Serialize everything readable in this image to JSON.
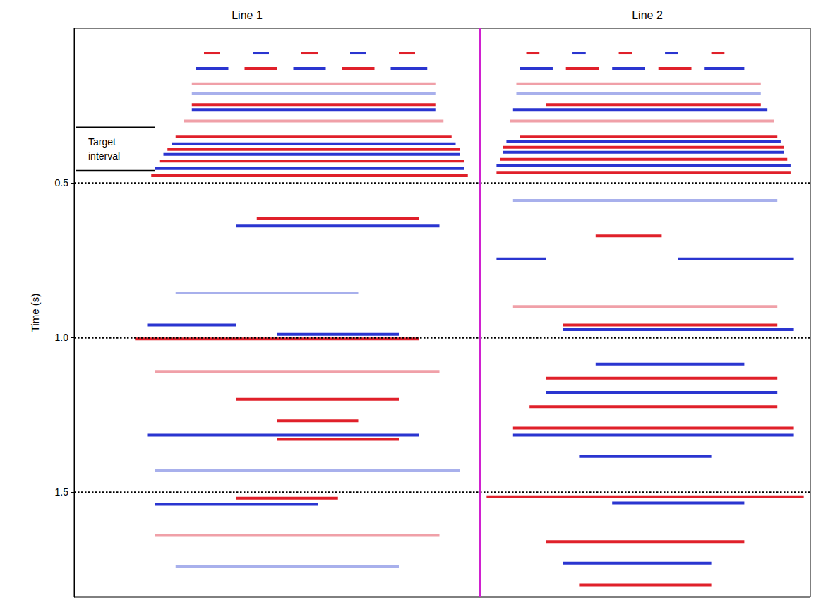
{
  "chart_data": {
    "type": "seismic_section",
    "ylabel": "Time (s)",
    "ylim": [
      0,
      1.84
    ],
    "yticks": [
      0.5,
      {
        "value": 1,
        "label": "1.0"
      },
      1.5
    ],
    "xlim": [
      0,
      100
    ],
    "grid": true,
    "tick_labels": "y",
    "annotations": [
      {
        "text": "Target interval",
        "t": [
          0.32,
          0.46
        ]
      }
    ],
    "panels": [
      {
        "title": "Line 1",
        "events": [
          {
            "x": [
              32,
              36
            ],
            "t": 0.08,
            "color": "#e0202a"
          },
          {
            "x": [
              44,
              48
            ],
            "t": 0.08,
            "color": "#2a35d0"
          },
          {
            "x": [
              56,
              60
            ],
            "t": 0.08,
            "color": "#e0202a"
          },
          {
            "x": [
              68,
              72
            ],
            "t": 0.08,
            "color": "#2a35d0"
          },
          {
            "x": [
              80,
              84
            ],
            "t": 0.08,
            "color": "#e0202a"
          },
          {
            "x": [
              30,
              38
            ],
            "t": 0.13,
            "color": "#2a35d0"
          },
          {
            "x": [
              42,
              50
            ],
            "t": 0.13,
            "color": "#e0202a"
          },
          {
            "x": [
              54,
              62
            ],
            "t": 0.13,
            "color": "#2a35d0"
          },
          {
            "x": [
              66,
              74
            ],
            "t": 0.13,
            "color": "#e0202a"
          },
          {
            "x": [
              78,
              87
            ],
            "t": 0.13,
            "color": "#2a35d0"
          },
          {
            "x": [
              29,
              89
            ],
            "t": 0.18,
            "color": "#f0a0a8"
          },
          {
            "x": [
              29,
              89
            ],
            "t": 0.21,
            "color": "#a8b0ec"
          },
          {
            "x": [
              29,
              89
            ],
            "t": 0.247,
            "color": "#e0202a"
          },
          {
            "x": [
              29,
              89
            ],
            "t": 0.263,
            "color": "#2a35d0"
          },
          {
            "x": [
              27,
              91
            ],
            "t": 0.3,
            "color": "#f0a0a8"
          },
          {
            "x": [
              25,
              93
            ],
            "t": 0.35,
            "color": "#e0202a"
          },
          {
            "x": [
              24,
              94
            ],
            "t": 0.374,
            "color": "#2a35d0"
          },
          {
            "x": [
              23,
              95
            ],
            "t": 0.392,
            "color": "#e0202a"
          },
          {
            "x": [
              22,
              95
            ],
            "t": 0.408,
            "color": "#2a35d0"
          },
          {
            "x": [
              21,
              96
            ],
            "t": 0.43,
            "color": "#e0202a"
          },
          {
            "x": [
              20,
              96
            ],
            "t": 0.454,
            "color": "#2a35d0"
          },
          {
            "x": [
              19,
              97
            ],
            "t": 0.477,
            "color": "#e0202a"
          },
          {
            "x": [
              45,
              85
            ],
            "t": 0.615,
            "color": "#e0202a"
          },
          {
            "x": [
              40,
              90
            ],
            "t": 0.64,
            "color": "#2a35d0"
          },
          {
            "x": [
              25,
              70
            ],
            "t": 0.856,
            "color": "#a8b0ec"
          },
          {
            "x": [
              18,
              40
            ],
            "t": 0.96,
            "color": "#2a35d0"
          },
          {
            "x": [
              50,
              80
            ],
            "t": 0.99,
            "color": "#2a35d0"
          },
          {
            "x": [
              15,
              85
            ],
            "t": 1.005,
            "color": "#e0202a"
          },
          {
            "x": [
              20,
              90
            ],
            "t": 1.11,
            "color": "#f0a0a8"
          },
          {
            "x": [
              40,
              80
            ],
            "t": 1.2,
            "color": "#e0202a"
          },
          {
            "x": [
              50,
              70
            ],
            "t": 1.27,
            "color": "#e0202a"
          },
          {
            "x": [
              18,
              85
            ],
            "t": 1.316,
            "color": "#2a35d0"
          },
          {
            "x": [
              50,
              80
            ],
            "t": 1.33,
            "color": "#e0202a"
          },
          {
            "x": [
              20,
              95
            ],
            "t": 1.43,
            "color": "#a8b0ec"
          },
          {
            "x": [
              40,
              65
            ],
            "t": 1.52,
            "color": "#e0202a"
          },
          {
            "x": [
              20,
              60
            ],
            "t": 1.54,
            "color": "#2a35d0"
          },
          {
            "x": [
              20,
              90
            ],
            "t": 1.64,
            "color": "#f0a0a8"
          },
          {
            "x": [
              25,
              80
            ],
            "t": 1.74,
            "color": "#a8b0ec"
          }
        ]
      },
      {
        "title": "Line 2",
        "events": [
          {
            "x": [
              14,
              18
            ],
            "t": 0.08,
            "color": "#e0202a"
          },
          {
            "x": [
              28,
              32
            ],
            "t": 0.08,
            "color": "#2a35d0"
          },
          {
            "x": [
              42,
              46
            ],
            "t": 0.08,
            "color": "#e0202a"
          },
          {
            "x": [
              56,
              60
            ],
            "t": 0.08,
            "color": "#2a35d0"
          },
          {
            "x": [
              70,
              74
            ],
            "t": 0.08,
            "color": "#e0202a"
          },
          {
            "x": [
              12,
              22
            ],
            "t": 0.13,
            "color": "#2a35d0"
          },
          {
            "x": [
              26,
              36
            ],
            "t": 0.13,
            "color": "#e0202a"
          },
          {
            "x": [
              40,
              50
            ],
            "t": 0.13,
            "color": "#2a35d0"
          },
          {
            "x": [
              54,
              64
            ],
            "t": 0.13,
            "color": "#e0202a"
          },
          {
            "x": [
              68,
              80
            ],
            "t": 0.13,
            "color": "#2a35d0"
          },
          {
            "x": [
              11,
              85
            ],
            "t": 0.18,
            "color": "#f0a0a8"
          },
          {
            "x": [
              11,
              85
            ],
            "t": 0.21,
            "color": "#a8b0ec"
          },
          {
            "x": [
              20,
              85
            ],
            "t": 0.247,
            "color": "#e0202a"
          },
          {
            "x": [
              10,
              87
            ],
            "t": 0.263,
            "color": "#2a35d0"
          },
          {
            "x": [
              9,
              89
            ],
            "t": 0.3,
            "color": "#f0a0a8"
          },
          {
            "x": [
              12,
              90
            ],
            "t": 0.35,
            "color": "#e0202a"
          },
          {
            "x": [
              8,
              91
            ],
            "t": 0.367,
            "color": "#2a35d0"
          },
          {
            "x": [
              7,
              92
            ],
            "t": 0.385,
            "color": "#e0202a"
          },
          {
            "x": [
              7,
              92
            ],
            "t": 0.401,
            "color": "#2a35d0"
          },
          {
            "x": [
              6,
              93
            ],
            "t": 0.424,
            "color": "#e0202a"
          },
          {
            "x": [
              5,
              94
            ],
            "t": 0.443,
            "color": "#2a35d0"
          },
          {
            "x": [
              5,
              94
            ],
            "t": 0.466,
            "color": "#e0202a"
          },
          {
            "x": [
              10,
              90
            ],
            "t": 0.557,
            "color": "#a8b0ec"
          },
          {
            "x": [
              35,
              55
            ],
            "t": 0.672,
            "color": "#e0202a"
          },
          {
            "x": [
              5,
              20
            ],
            "t": 0.746,
            "color": "#2a35d0"
          },
          {
            "x": [
              60,
              95
            ],
            "t": 0.746,
            "color": "#2a35d0"
          },
          {
            "x": [
              10,
              90
            ],
            "t": 0.9,
            "color": "#f0a0a8"
          },
          {
            "x": [
              25,
              90
            ],
            "t": 0.96,
            "color": "#e0202a"
          },
          {
            "x": [
              25,
              95
            ],
            "t": 0.975,
            "color": "#2a35d0"
          },
          {
            "x": [
              35,
              80
            ],
            "t": 1.086,
            "color": "#2a35d0"
          },
          {
            "x": [
              20,
              90
            ],
            "t": 1.132,
            "color": "#e0202a"
          },
          {
            "x": [
              20,
              90
            ],
            "t": 1.178,
            "color": "#2a35d0"
          },
          {
            "x": [
              15,
              90
            ],
            "t": 1.224,
            "color": "#e0202a"
          },
          {
            "x": [
              10,
              95
            ],
            "t": 1.293,
            "color": "#e0202a"
          },
          {
            "x": [
              10,
              95
            ],
            "t": 1.316,
            "color": "#2a35d0"
          },
          {
            "x": [
              30,
              70
            ],
            "t": 1.385,
            "color": "#2a35d0"
          },
          {
            "x": [
              2,
              98
            ],
            "t": 1.515,
            "color": "#e0202a"
          },
          {
            "x": [
              40,
              80
            ],
            "t": 1.535,
            "color": "#2a35d0"
          },
          {
            "x": [
              20,
              80
            ],
            "t": 1.66,
            "color": "#e0202a"
          },
          {
            "x": [
              25,
              70
            ],
            "t": 1.73,
            "color": "#2a35d0"
          },
          {
            "x": [
              30,
              70
            ],
            "t": 1.8,
            "color": "#e0202a"
          }
        ]
      }
    ]
  }
}
